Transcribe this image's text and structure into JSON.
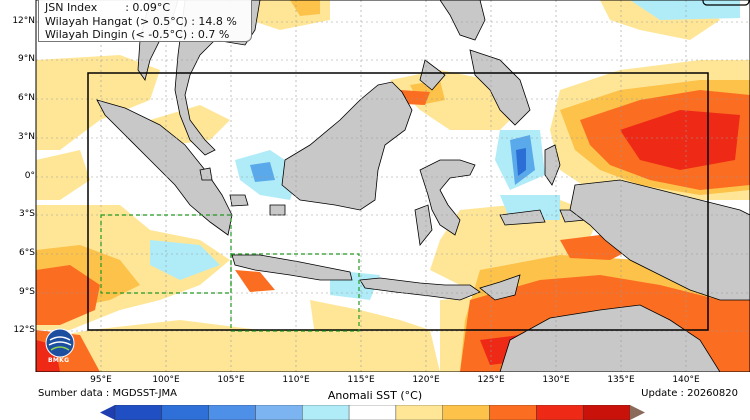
{
  "info": {
    "jsn_index": "JSN Index        : 0.09°C",
    "warm_area": "Wilayah Hangat (> 0.5°C) : 14.8 %",
    "cold_area": "Wilayah Dingin (< -0.5°C) : 0.7 %"
  },
  "lat_labels": [
    "12°N",
    "9°N",
    "6°N",
    "3°N",
    "0°",
    "3°S",
    "6°S",
    "9°S",
    "12°S"
  ],
  "lon_labels": [
    "95°E",
    "100°E",
    "105°E",
    "110°E",
    "115°E",
    "120°E",
    "125°E",
    "130°E",
    "135°E",
    "140°E"
  ],
  "source": "Sumber data : MGDSST-JMA",
  "update": "Update : 20260820",
  "colorbar_title": "Anomali SST (°C)",
  "logo_text": "BMKG",
  "colors": {
    "ocean_neutral": "#ffffff",
    "land": "#c8c8c8",
    "light_warm": "#ffe696",
    "warm": "#fcc24a",
    "hot": "#fb6d21",
    "very_hot": "#ee2a16",
    "light_cool": "#b0ecf8",
    "cool": "#5aa9ea",
    "cold": "#2b6fd6",
    "box": "#000000",
    "dashed_box": "#229922"
  },
  "colorbar_colors": [
    "#1f4fc2",
    "#2e6fd8",
    "#4e8fe8",
    "#7bb4f0",
    "#b0ecf8",
    "#ffffff",
    "#ffe696",
    "#fcc24a",
    "#fb6d21",
    "#ee2a16",
    "#c8120a"
  ]
}
